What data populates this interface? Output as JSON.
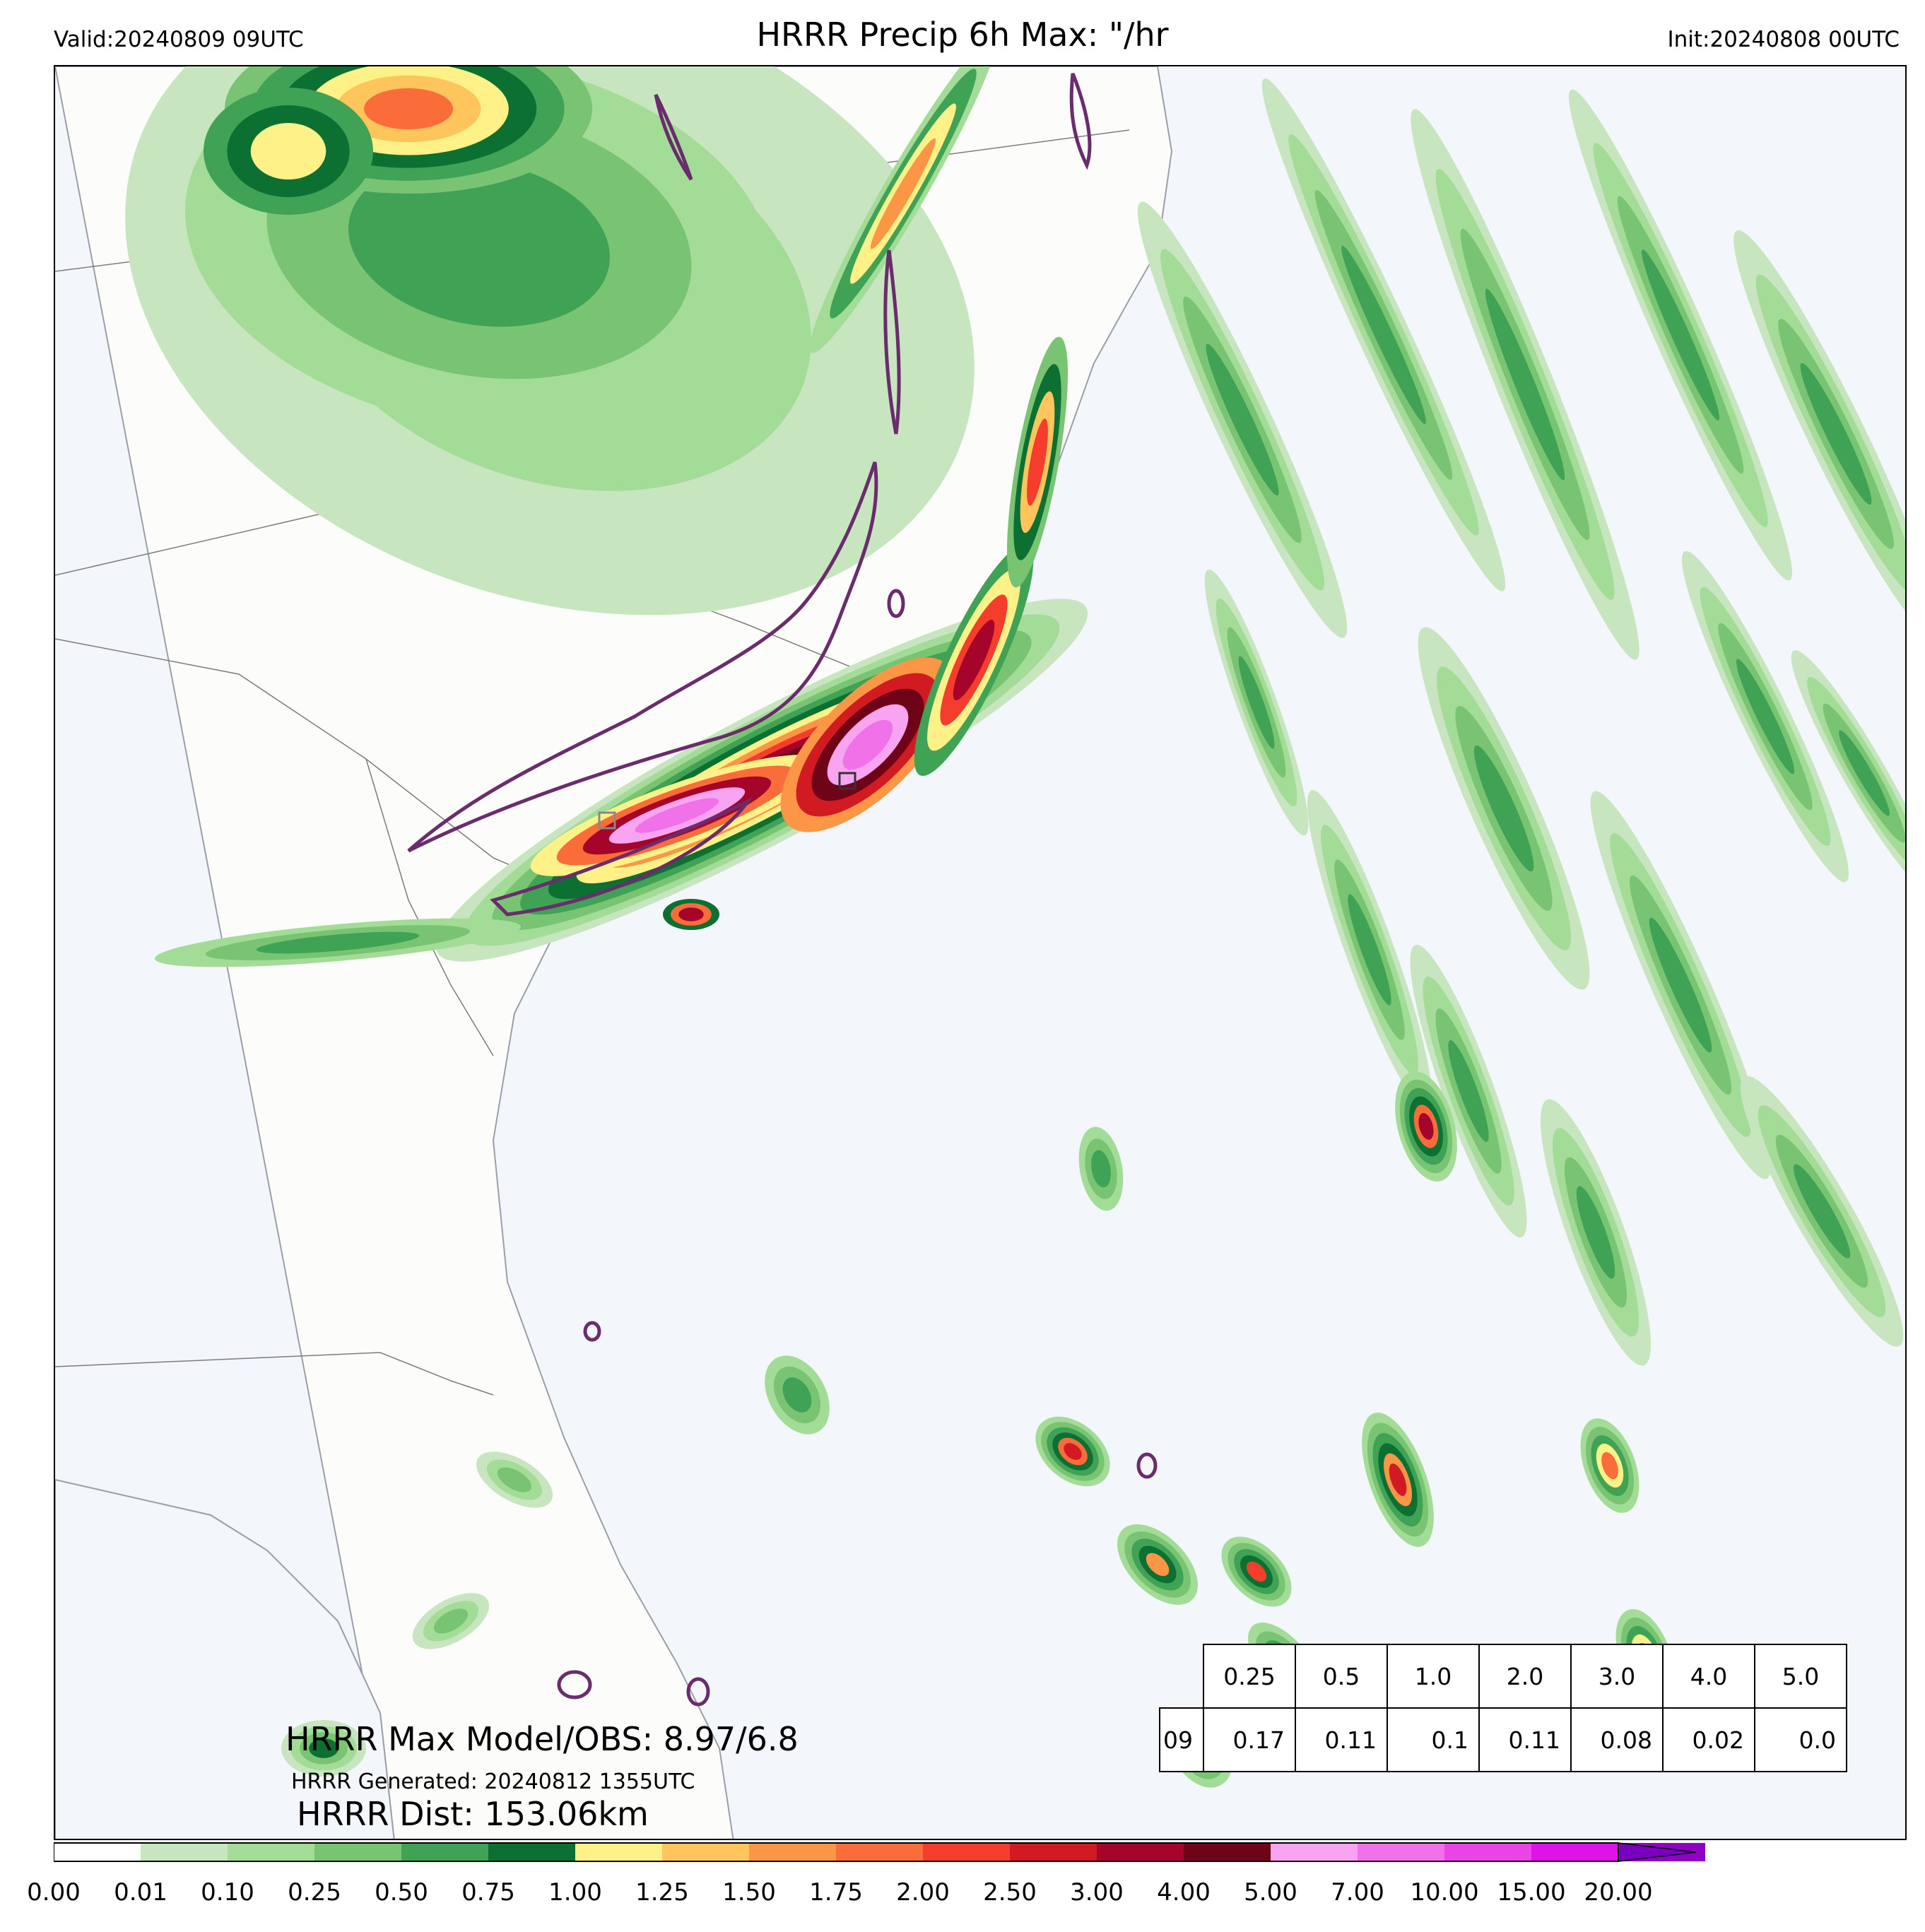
{
  "header": {
    "valid": "Valid:20240809 09UTC",
    "title": "HRRR Precip 6h Max: \"/hr",
    "init": "Init:20240808 00UTC"
  },
  "annotations": {
    "max_model_obs": "HRRR Max Model/OBS: 8.97/6.8",
    "generated": "HRRR Generated: 20240812 1355UTC",
    "dist": "HRRR Dist: 153.06km"
  },
  "stats_table": {
    "thresholds": [
      "0.25",
      "0.5",
      "1.0",
      "2.0",
      "3.0",
      "4.0",
      "5.0"
    ],
    "row_label": "09",
    "values": [
      "0.17",
      "0.11",
      "0.1",
      "0.11",
      "0.08",
      "0.02",
      "0.0"
    ]
  },
  "colorbar": {
    "ticks": [
      "0.00",
      "0.01",
      "0.10",
      "0.25",
      "0.50",
      "0.75",
      "1.00",
      "1.25",
      "1.50",
      "1.75",
      "2.00",
      "2.50",
      "3.00",
      "4.00",
      "5.00",
      "7.00",
      "10.00",
      "15.00",
      "20.00"
    ],
    "colors": [
      "#ffffff",
      "#c7e6c0",
      "#a2dc96",
      "#78c473",
      "#3fa255",
      "#0b7032",
      "#fef188",
      "#fdc55c",
      "#fb9646",
      "#fb6c3b",
      "#f53d2d",
      "#d11a22",
      "#a5052b",
      "#6f0418",
      "#f8a4f0",
      "#f172e8",
      "#e844e6",
      "#df12e8",
      "#8f03c4"
    ],
    "extend_color": "#7a00c0"
  },
  "map_colors": {
    "land": "#fcfcfa",
    "ocean": "#f3f6fb",
    "obs_contour": "#6a2c6c",
    "borders": "#7c7c7c"
  }
}
